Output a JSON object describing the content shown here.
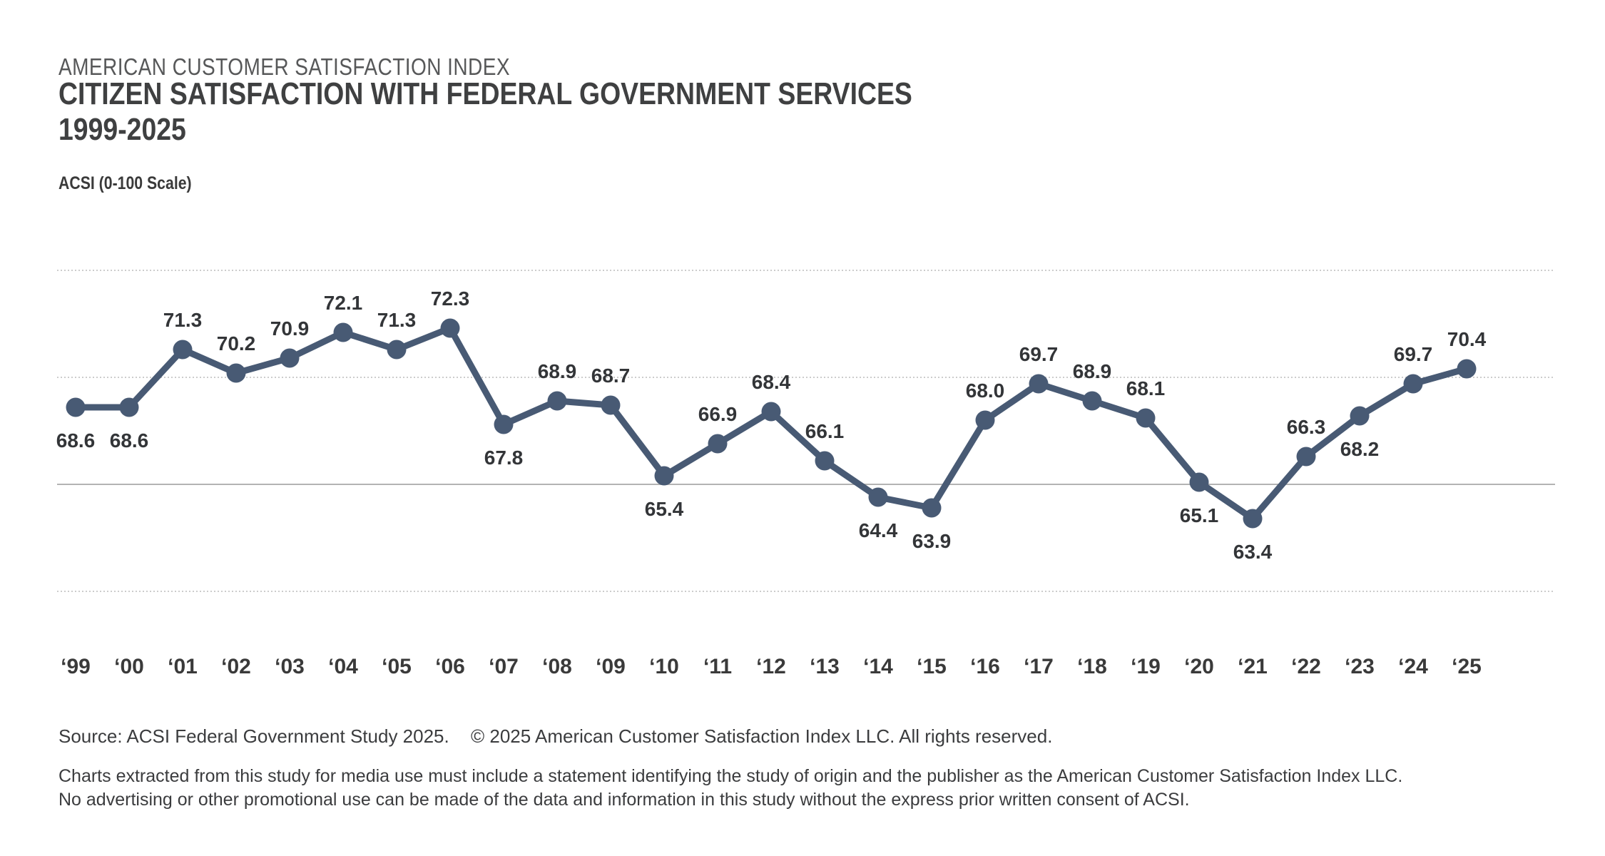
{
  "header": {
    "eyebrow": "AMERICAN CUSTOMER SATISFACTION INDEX",
    "title_line1": "CITIZEN SATISFACTION WITH FEDERAL GOVERNMENT SERVICES",
    "title_line2": "1999-2025",
    "axis_note": "ACSI (0-100 Scale)"
  },
  "footer": {
    "source": "Source: ACSI Federal Government Study 2025.",
    "copyright": "© 2025 American Customer Satisfaction Index LLC. All rights reserved.",
    "legal_line1": "Charts extracted from this study for media use must include a statement identifying the study of origin and the publisher as the American Customer Satisfaction Index LLC.",
    "legal_line2": "No advertising or other promotional use can be made of the data and information in this study without the express prior written consent of ACSI."
  },
  "chart_data": {
    "type": "line",
    "title": "Citizen Satisfaction with Federal Government Services 1999-2025",
    "subtitle": "American Customer Satisfaction Index",
    "xlabel": "",
    "ylabel": "ACSI (0-100 Scale)",
    "ylim": [
      60,
      75
    ],
    "grid": true,
    "gridline_values": [
      75,
      70,
      65,
      60
    ],
    "legend_position": "none",
    "categories": [
      "‘99",
      "‘00",
      "‘01",
      "‘02",
      "‘03",
      "‘04",
      "‘05",
      "‘06",
      "‘07",
      "‘08",
      "‘09",
      "‘10",
      "‘11",
      "‘12",
      "‘13",
      "‘14",
      "‘15",
      "‘16",
      "‘17",
      "‘18",
      "‘19",
      "‘20",
      "‘21",
      "‘22",
      "‘23",
      "‘24",
      "‘25"
    ],
    "values": [
      68.6,
      68.6,
      71.3,
      70.2,
      70.9,
      72.1,
      71.3,
      72.3,
      67.8,
      68.9,
      68.7,
      65.4,
      66.9,
      68.4,
      66.1,
      64.4,
      63.9,
      68.0,
      69.7,
      68.9,
      68.1,
      65.1,
      63.4,
      66.3,
      68.2,
      69.7,
      70.4
    ],
    "label_positions": [
      "below",
      "below",
      "above",
      "above",
      "above",
      "above",
      "above",
      "above",
      "below",
      "above",
      "above",
      "below",
      "above",
      "above",
      "above",
      "below",
      "below",
      "above",
      "above",
      "above",
      "above",
      "below",
      "below",
      "above",
      "below",
      "above",
      "above"
    ],
    "colors": {
      "line": "#485a74",
      "marker": "#485a74",
      "grid_light": "#cccccc",
      "grid_dark": "#b3b3b3",
      "data_label": "#333538",
      "tick_label": "#3a3a3a"
    }
  }
}
